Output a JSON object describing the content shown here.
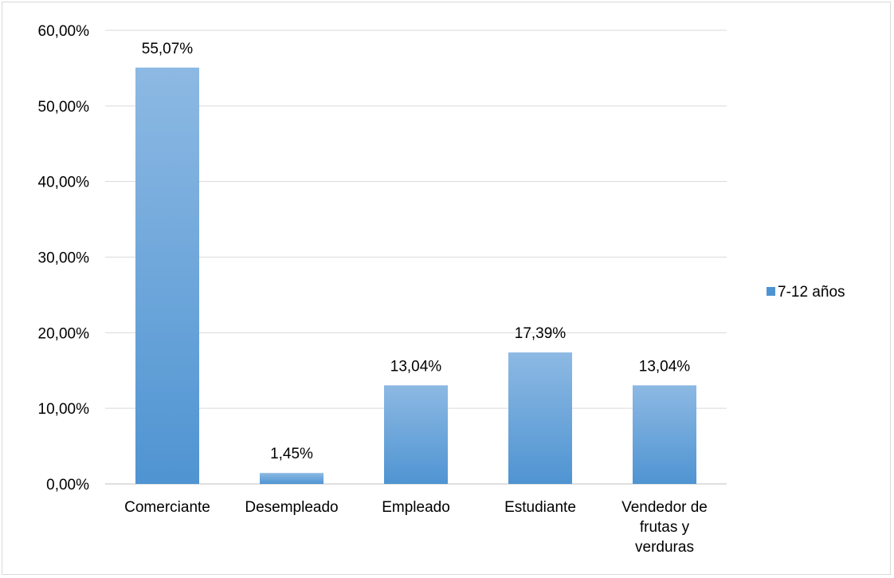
{
  "chart_data": {
    "type": "bar",
    "title": "",
    "xlabel": "",
    "ylabel": "",
    "categories": [
      "Comerciante",
      "Desempleado",
      "Empleado",
      "Estudiante",
      "Vendedor de frutas y verduras"
    ],
    "series": [
      {
        "name": "7-12 años",
        "values": [
          55.07,
          1.45,
          13.04,
          17.39,
          13.04
        ],
        "data_labels": [
          "55,07%",
          "1,45%",
          "13,04%",
          "17,39%",
          "13,04%"
        ]
      }
    ],
    "ylim": [
      0,
      60
    ],
    "y_ticks": [
      0,
      10,
      20,
      30,
      40,
      50,
      60
    ],
    "y_tick_labels": [
      "0,00%",
      "10,00%",
      "20,00%",
      "30,00%",
      "40,00%",
      "50,00%",
      "60,00%"
    ],
    "grid": true,
    "legend_position": "right",
    "colors": {
      "bar_top": "#8db9e3",
      "bar_bottom": "#4f94d2",
      "grid": "#d9d9d9",
      "axis": "#bfbfbf",
      "border": "#d9d9d9"
    }
  }
}
